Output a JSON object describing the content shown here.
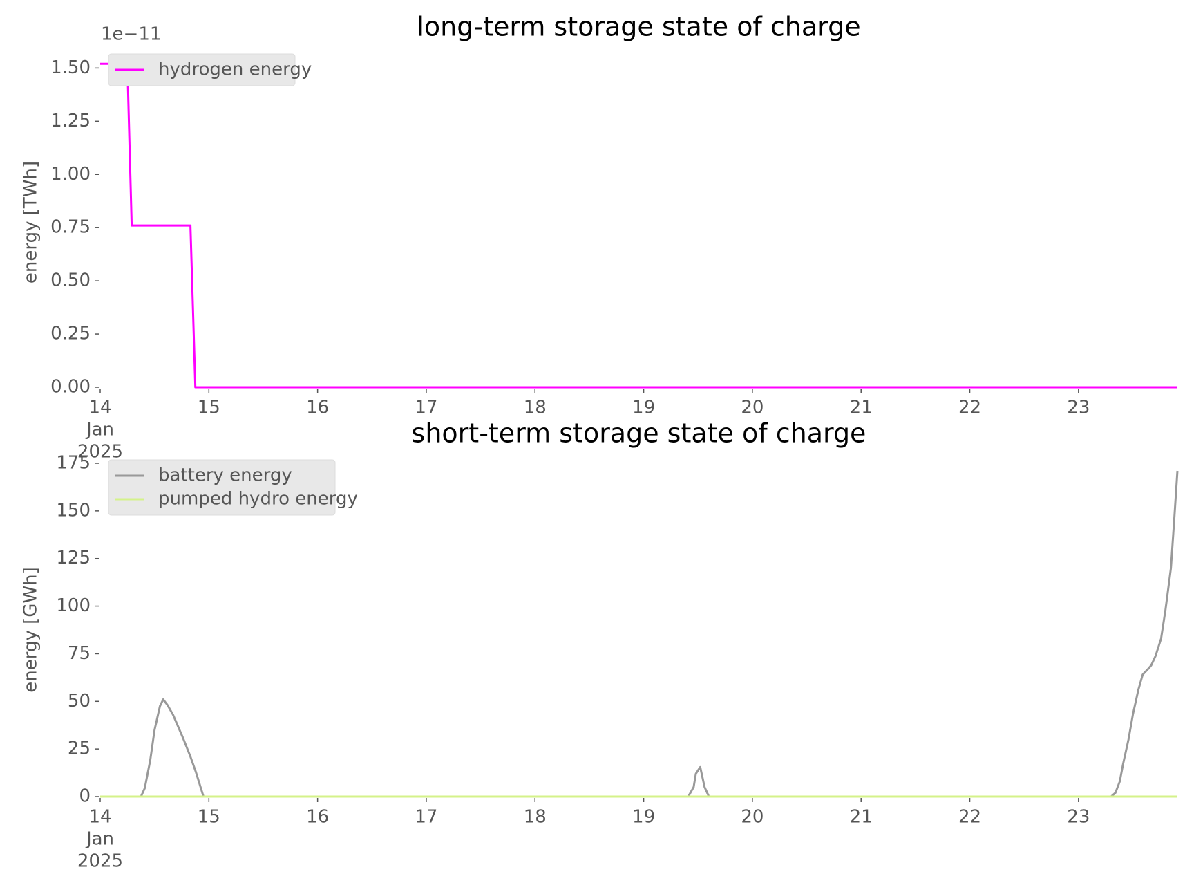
{
  "chart_data": [
    {
      "type": "line",
      "title": "long-term storage state of charge",
      "y_label": "energy [TWh]",
      "y_offset_label": "1e−11",
      "xlim": [
        14,
        23.91
      ],
      "xticks": [
        14,
        15,
        16,
        17,
        18,
        19,
        20,
        21,
        22,
        23
      ],
      "xtick_sublabels": [
        "Jan",
        "2025"
      ],
      "ylim": [
        0,
        1.55
      ],
      "yticks": [
        {
          "value": 0,
          "label": "0.00"
        },
        {
          "value": 0.25,
          "label": "0.25"
        },
        {
          "value": 0.5,
          "label": "0.50"
        },
        {
          "value": 0.75,
          "label": "0.75"
        },
        {
          "value": 1,
          "label": "1.00"
        },
        {
          "value": 1.25,
          "label": "1.25"
        },
        {
          "value": 1.5,
          "label": "1.50"
        }
      ],
      "legend": "upper left",
      "series": [
        {
          "name": "hydrogen energy",
          "color": "#ff00ff",
          "x": [
            14,
            14.25,
            14.29,
            14.83,
            14.875,
            23.91
          ],
          "values": [
            1.52,
            1.52,
            0.76,
            0.76,
            0,
            0
          ]
        }
      ]
    },
    {
      "type": "line",
      "title": "short-term storage state of charge",
      "y_label": "energy [GWh]",
      "xlim": [
        14,
        23.91
      ],
      "xticks": [
        14,
        15,
        16,
        17,
        18,
        19,
        20,
        21,
        22,
        23
      ],
      "xtick_sublabels": [
        "Jan",
        "2025"
      ],
      "ylim": [
        0,
        175
      ],
      "yticks": [
        0,
        25,
        50,
        75,
        100,
        125,
        150,
        175
      ],
      "legend": "upper left",
      "series": [
        {
          "name": "battery energy",
          "color": "#999999",
          "x": [
            14,
            14.375,
            14.41,
            14.46,
            14.5,
            14.55,
            14.58,
            14.62,
            14.67,
            14.76,
            14.83,
            14.88,
            14.95,
            19.41,
            19.46,
            19.48,
            19.52,
            19.56,
            19.6,
            23.3,
            23.34,
            23.38,
            23.41,
            23.46,
            23.5,
            23.55,
            23.59,
            23.64,
            23.67,
            23.71,
            23.76,
            23.8,
            23.85,
            23.88,
            23.91
          ],
          "values": [
            0,
            0,
            4.4,
            19,
            35,
            47.5,
            51,
            48,
            43,
            31,
            21,
            13,
            0,
            0,
            5,
            12,
            15.5,
            5,
            0,
            0,
            2,
            8,
            17,
            30,
            43,
            56,
            64,
            67,
            69,
            74,
            83,
            98,
            120,
            145,
            171
          ]
        },
        {
          "name": "pumped hydro energy",
          "color": "#d4f28a",
          "x": [
            14,
            23.91
          ],
          "values": [
            0,
            0
          ]
        }
      ]
    }
  ]
}
